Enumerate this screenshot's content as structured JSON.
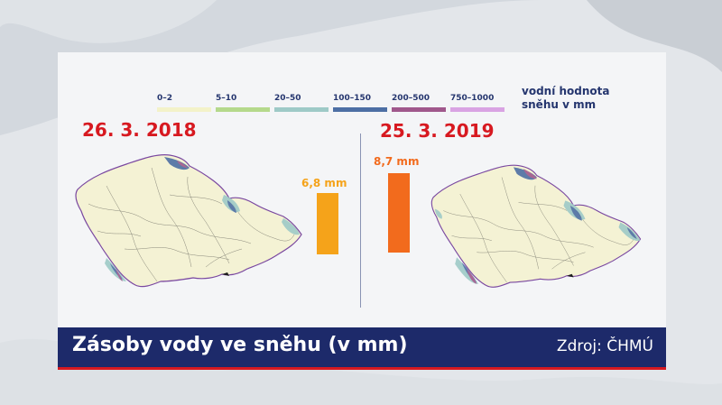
{
  "legend": {
    "title_line1": "vodní hodnota",
    "title_line2": "sněhu v mm",
    "items": [
      {
        "label": "0–2",
        "color": "#f3f2c9"
      },
      {
        "label": "5–10",
        "color": "#b5d98c"
      },
      {
        "label": "20–50",
        "color": "#9ecac7"
      },
      {
        "label": "100–150",
        "color": "#4d6fa4"
      },
      {
        "label": "200–500",
        "color": "#a0588c"
      },
      {
        "label": "750–1000",
        "color": "#d9a3e3"
      }
    ]
  },
  "panels": [
    {
      "date": "26. 3. 2018",
      "value_label": "6,8 mm",
      "value": 6.8,
      "bar_color": "#f5a31a"
    },
    {
      "date": "25. 3. 2019",
      "value_label": "8,7 mm",
      "value": 8.7,
      "bar_color": "#f26b1d"
    }
  ],
  "footer": {
    "title": "Zásoby vody ve sněhu (v mm)",
    "source": "Zdroj: ČHMÚ"
  }
}
